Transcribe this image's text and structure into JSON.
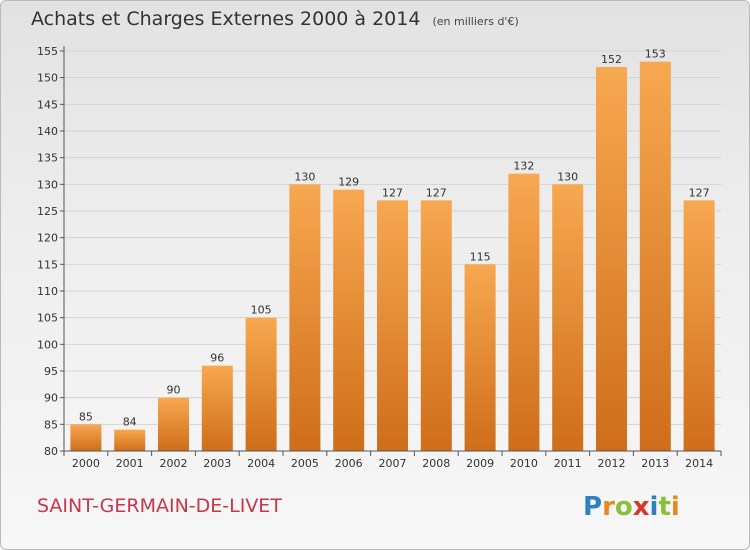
{
  "header": {
    "title": "Achats et Charges Externes 2000 à 2014",
    "subtitle": "(en milliers d'€)"
  },
  "footer": {
    "commune": "SAINT-GERMAIN-DE-LIVET",
    "logo_text": "Proxiti"
  },
  "colors": {
    "bar_light": "#f7a850",
    "bar_dark": "#cf6d1a",
    "commune_text": "#c8364a",
    "axis": "#555555"
  },
  "chart_data": {
    "type": "bar",
    "categories": [
      "2000",
      "2001",
      "2002",
      "2003",
      "2004",
      "2005",
      "2006",
      "2007",
      "2008",
      "2009",
      "2010",
      "2011",
      "2012",
      "2013",
      "2014"
    ],
    "values": [
      85,
      84,
      90,
      96,
      105,
      130,
      129,
      127,
      127,
      115,
      132,
      130,
      152,
      153,
      127
    ],
    "title": "Achats et Charges Externes 2000 à 2014",
    "subtitle": "(en milliers d'€)",
    "xlabel": "",
    "ylabel": "",
    "ylim": [
      80,
      155
    ],
    "yticks": [
      80,
      85,
      90,
      95,
      100,
      105,
      110,
      115,
      120,
      125,
      130,
      135,
      140,
      145,
      150,
      155
    ],
    "grid": true,
    "data_labels": true
  }
}
